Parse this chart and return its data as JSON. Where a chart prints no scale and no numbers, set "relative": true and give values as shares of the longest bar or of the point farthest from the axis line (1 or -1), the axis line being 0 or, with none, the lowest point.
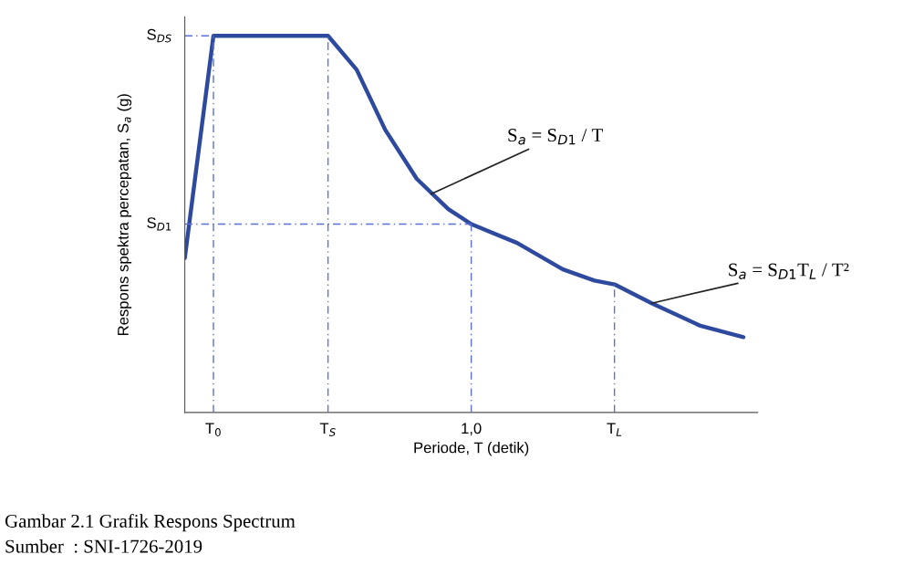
{
  "chart_data": {
    "type": "line",
    "relative": true,
    "xlabel": "Periode, T (detik)",
    "ylabel": "Respons spektra percepatan, S$_{a}$ (g)",
    "xlim": [
      0,
      2.0
    ],
    "xticks": [
      {
        "value": 0.1,
        "label": "T$_{0}$"
      },
      {
        "value": 0.5,
        "label": "T$_{S}$"
      },
      {
        "value": 1.0,
        "label": "1,0"
      },
      {
        "value": 1.5,
        "label": "T$_{L}$"
      }
    ],
    "tick_labels": "x",
    "grid": false,
    "legend": false,
    "series": [
      {
        "color": "#2e4a9e",
        "line_style": "solid",
        "x": [
          0,
          0.1,
          0.5,
          0.6,
          0.7,
          0.81,
          0.92,
          1.0,
          1.16,
          1.32,
          1.43,
          1.5,
          1.63,
          1.8,
          1.95
        ],
        "values": [
          0.41,
          1,
          1,
          0.91,
          0.75,
          0.62,
          0.54,
          0.5,
          0.45,
          0.38,
          0.35,
          0.34,
          0.29,
          0.23,
          0.2
        ]
      },
      {
        "color": "#5b6fd6",
        "line_style": "dashed",
        "x": [
          0,
          0.1
        ],
        "values": [
          1,
          1
        ]
      },
      {
        "color": "#5b6fd6",
        "line_style": "dashed",
        "x": [
          0,
          1.0
        ],
        "values": [
          0.5,
          0.5
        ]
      },
      {
        "color": "#5b6fd6",
        "line_style": "dashed",
        "x": [
          0.1,
          0.1
        ],
        "values": [
          0,
          1
        ]
      },
      {
        "color": "#5b6fd6",
        "line_style": "dashed",
        "x": [
          0.5,
          0.5
        ],
        "values": [
          0,
          1
        ]
      },
      {
        "color": "#5b6fd6",
        "line_style": "dashed",
        "x": [
          1.0,
          1.0
        ],
        "values": [
          0,
          0.5
        ]
      },
      {
        "color": "#5b6fd6",
        "line_style": "dashed",
        "x": [
          1.5,
          1.5
        ],
        "values": [
          0,
          0.34
        ]
      }
    ],
    "annotations": [
      {
        "text": "S$_{DS}$",
        "x": 0,
        "y": 1
      },
      {
        "text": "S$_{D1}$",
        "x": 0,
        "y": 0.5
      },
      {
        "text": "S$_{a}$ = S$_{D1}$ / T",
        "x": 0.86,
        "y": 0.58
      },
      {
        "text": "S$_{a}$ = S$_{D1}$T$_{L}$ / T²",
        "x": 1.63,
        "y": 0.29
      },
      "Gambar 2.1 Grafik Respons Spectrum",
      "Sumber  : SNI-1726-2019"
    ]
  }
}
